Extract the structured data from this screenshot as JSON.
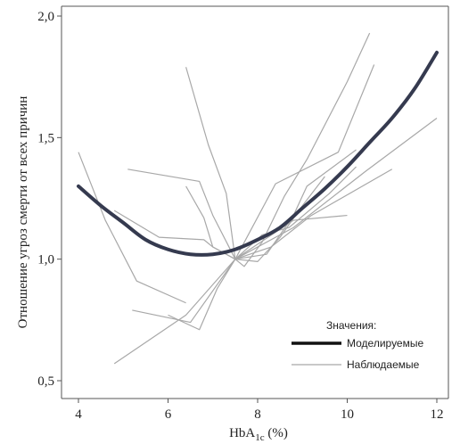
{
  "chart_data": {
    "type": "line",
    "title": "",
    "xlabel": "HbA",
    "xlabel_sub": "1c",
    "xlabel_unit": " (%)",
    "ylabel": "Отношение угроз смерти от всех причин",
    "xlim": [
      4,
      12
    ],
    "ylim": [
      0.5,
      2.0
    ],
    "x_ticks": [
      4,
      6,
      8,
      10,
      12
    ],
    "x_tick_labels": [
      "4",
      "6",
      "8",
      "10",
      "12"
    ],
    "y_ticks": [
      0.5,
      1.0,
      1.5,
      2.0
    ],
    "y_tick_labels": [
      "0,5",
      "1,0",
      "1,5",
      "2,0"
    ],
    "grid": false,
    "legend": {
      "title": "Значения:",
      "position": "bottom-right",
      "entries": [
        {
          "label": "Моделируемые",
          "style": "thick",
          "color": "#111111"
        },
        {
          "label": "Наблюдаемые",
          "style": "thin",
          "color": "#a8a8a8"
        }
      ]
    },
    "modelled": {
      "name": "Моделируемые",
      "color": "#353a4f",
      "x": [
        4.0,
        4.5,
        5.0,
        5.5,
        6.0,
        6.5,
        7.0,
        7.5,
        8.0,
        8.5,
        9.0,
        9.5,
        10.0,
        10.5,
        11.0,
        11.5,
        12.0
      ],
      "y": [
        1.3,
        1.22,
        1.15,
        1.08,
        1.04,
        1.02,
        1.02,
        1.04,
        1.08,
        1.13,
        1.21,
        1.29,
        1.38,
        1.48,
        1.58,
        1.7,
        1.85
      ]
    },
    "observed_color": "#a8a8a8",
    "observed": [
      {
        "x": [
          4.0,
          4.6,
          5.3,
          6.4
        ],
        "y": [
          1.44,
          1.16,
          0.91,
          0.82
        ]
      },
      {
        "x": [
          4.8,
          5.8,
          6.8,
          7.0,
          7.5,
          8.8,
          10.0
        ],
        "y": [
          1.2,
          1.09,
          1.08,
          1.05,
          1.0,
          1.16,
          1.18
        ]
      },
      {
        "x": [
          5.1,
          6.7,
          7.0,
          7.5,
          8.4,
          9.8,
          10.6
        ],
        "y": [
          1.37,
          1.32,
          1.18,
          1.0,
          1.31,
          1.44,
          1.8
        ]
      },
      {
        "x": [
          6.4,
          6.9,
          7.3,
          7.5,
          7.7,
          8.1,
          8.6,
          9.1,
          10.0,
          10.5
        ],
        "y": [
          1.79,
          1.47,
          1.27,
          1.0,
          0.97,
          1.07,
          1.26,
          1.41,
          1.73,
          1.93
        ]
      },
      {
        "x": [
          6.4,
          6.8,
          7.0,
          7.5,
          8.2,
          8.8,
          9.1,
          10.2
        ],
        "y": [
          1.3,
          1.17,
          1.05,
          1.0,
          1.02,
          1.18,
          1.3,
          1.45
        ]
      },
      {
        "x": [
          5.2,
          6.5,
          7.5,
          8.1,
          8.7,
          9.6,
          10.2
        ],
        "y": [
          0.79,
          0.74,
          1.0,
          1.1,
          1.13,
          1.27,
          1.38
        ]
      },
      {
        "x": [
          4.8,
          6.4,
          7.5,
          8.8,
          10.4,
          12.0
        ],
        "y": [
          0.57,
          0.77,
          1.0,
          1.13,
          1.36,
          1.58
        ]
      },
      {
        "x": [
          6.0,
          6.7,
          7.1,
          7.5,
          8.3,
          9.2,
          11.0
        ],
        "y": [
          0.77,
          0.71,
          0.88,
          1.0,
          1.05,
          1.18,
          1.37
        ]
      },
      {
        "x": [
          7.5,
          8.0,
          8.5,
          9.0,
          9.5
        ],
        "y": [
          1.0,
          0.99,
          1.09,
          1.22,
          1.34
        ]
      }
    ]
  }
}
